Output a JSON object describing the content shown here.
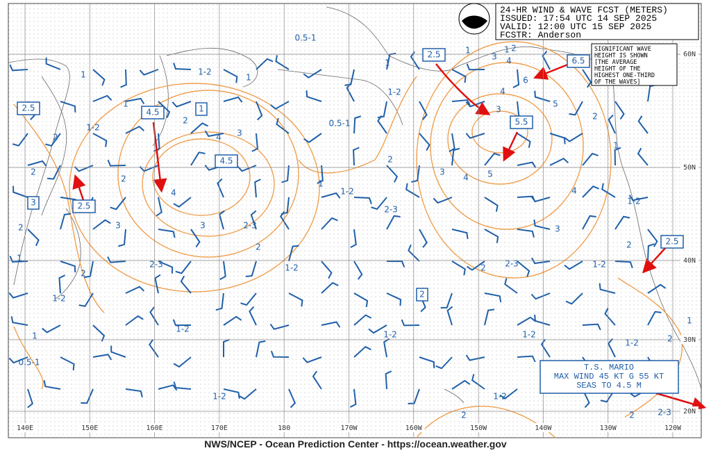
{
  "header": {
    "title": "24-HR WIND & WAVE FCST (METERS)",
    "issued": "ISSUED: 17:54 UTC 14 SEP 2025",
    "valid": "VALID: 12:00 UTC 15 SEP 2025",
    "forecaster": "FCSTR: Anderson"
  },
  "note": [
    "SIGNIFICANT WAVE",
    "HEIGHT IS SHOWN",
    "[THE AVERAGE",
    "HEIGHT OF THE",
    "HIGHEST ONE-THIRD",
    "OF THE WAVES]"
  ],
  "storm": [
    "T.S. MARIO",
    "MAX WIND 45 KT G 55 KT",
    "SEAS TO 4.5 M"
  ],
  "longitudes": [
    "140E",
    "150E",
    "160E",
    "170E",
    "180",
    "170W",
    "160W",
    "150W",
    "140W",
    "130W",
    "120W"
  ],
  "latitudes": [
    "60N",
    "50N",
    "40N",
    "30N",
    "20N"
  ],
  "boxed_labels": [
    "2.5",
    "4.5",
    "1",
    "4.5",
    "3",
    "2.5",
    "2.5",
    "6.5",
    "5.5",
    "2",
    "2.5"
  ],
  "contour_labels": [
    "0.5-1",
    "1-2",
    "1",
    "1",
    "1",
    "1-2",
    "2",
    "2",
    "3",
    "4",
    "2",
    "2",
    "4",
    "3",
    "3",
    "2-3",
    "2",
    "2",
    "1",
    "2",
    "2-3",
    "1-2",
    "1-2",
    "1",
    "0.5-1",
    "1-2",
    "0.5-1",
    "1",
    "1-2",
    "2-3",
    "2",
    "1-2",
    "1-2",
    "2",
    "1-2",
    "1-2",
    "2-3",
    "2",
    "3",
    "4",
    "4",
    "5",
    "3",
    "3",
    "4",
    "1",
    "1-2",
    "1",
    "3",
    "1",
    "4",
    "2",
    "6",
    "5",
    "2",
    "1",
    "1-2",
    "2",
    "1-2",
    "1",
    "2",
    "1-2",
    "2",
    "2-3"
  ],
  "footer": "NWS/NCEP - Ocean Prediction Center - https://ocean.weather.gov"
}
